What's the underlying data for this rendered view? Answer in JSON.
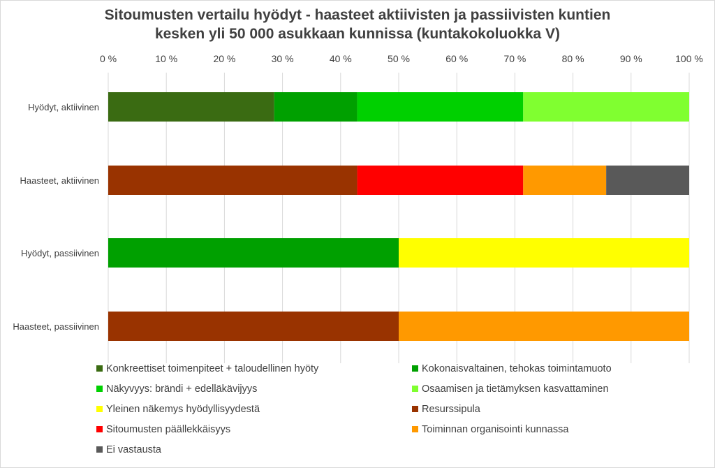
{
  "chart_data": {
    "type": "bar",
    "orientation": "horizontal",
    "stacked": "percent",
    "title_lines": [
      "Sitoumusten vertailu hyödyt - haasteet aktiivisten ja passiivisten kuntien",
      "kesken yli 50 000 asukkaan kunnissa (kuntakokoluokka V)"
    ],
    "categories": [
      "Hyödyt, aktiivinen",
      "Haasteet, aktiivinen",
      "Hyödyt, passiivinen",
      "Haasteet, passiivinen"
    ],
    "x_ticks": [
      "0 %",
      "10 %",
      "20 %",
      "30 %",
      "40 %",
      "50 %",
      "60 %",
      "70 %",
      "80 %",
      "90 %",
      "100 %"
    ],
    "xlim": [
      0,
      100
    ],
    "grid": true,
    "legend_position": "bottom",
    "series": [
      {
        "name": "Konkreettiset toimenpiteet + taloudellinen hyöty",
        "color": "#3a6b12",
        "values": [
          28.6,
          0,
          0,
          0
        ]
      },
      {
        "name": "Kokonaisvaltainen, tehokas toimintamuoto",
        "color": "#00a000",
        "values": [
          14.3,
          0,
          50,
          0
        ]
      },
      {
        "name": "Näkyvyys: brändi + edelläkävijyys",
        "color": "#00d000",
        "values": [
          28.6,
          0,
          0,
          0
        ]
      },
      {
        "name": "Osaamisen ja tietämyksen kasvattaminen",
        "color": "#80ff30",
        "values": [
          28.6,
          0,
          0,
          0
        ]
      },
      {
        "name": "Yleinen näkemys hyödyllisyydestä",
        "color": "#ffff00",
        "values": [
          0,
          0,
          50,
          0
        ]
      },
      {
        "name": "Resurssipula",
        "color": "#993300",
        "values": [
          0,
          42.9,
          0,
          50
        ]
      },
      {
        "name": "Sitoumusten päällekkäisyys",
        "color": "#ff0000",
        "values": [
          0,
          28.6,
          0,
          0
        ]
      },
      {
        "name": "Toiminnan organisointi kunnassa",
        "color": "#ff9900",
        "values": [
          0,
          14.3,
          0,
          50
        ]
      },
      {
        "name": "Ei vastausta",
        "color": "#595959",
        "values": [
          0,
          14.3,
          0,
          0
        ]
      }
    ]
  }
}
